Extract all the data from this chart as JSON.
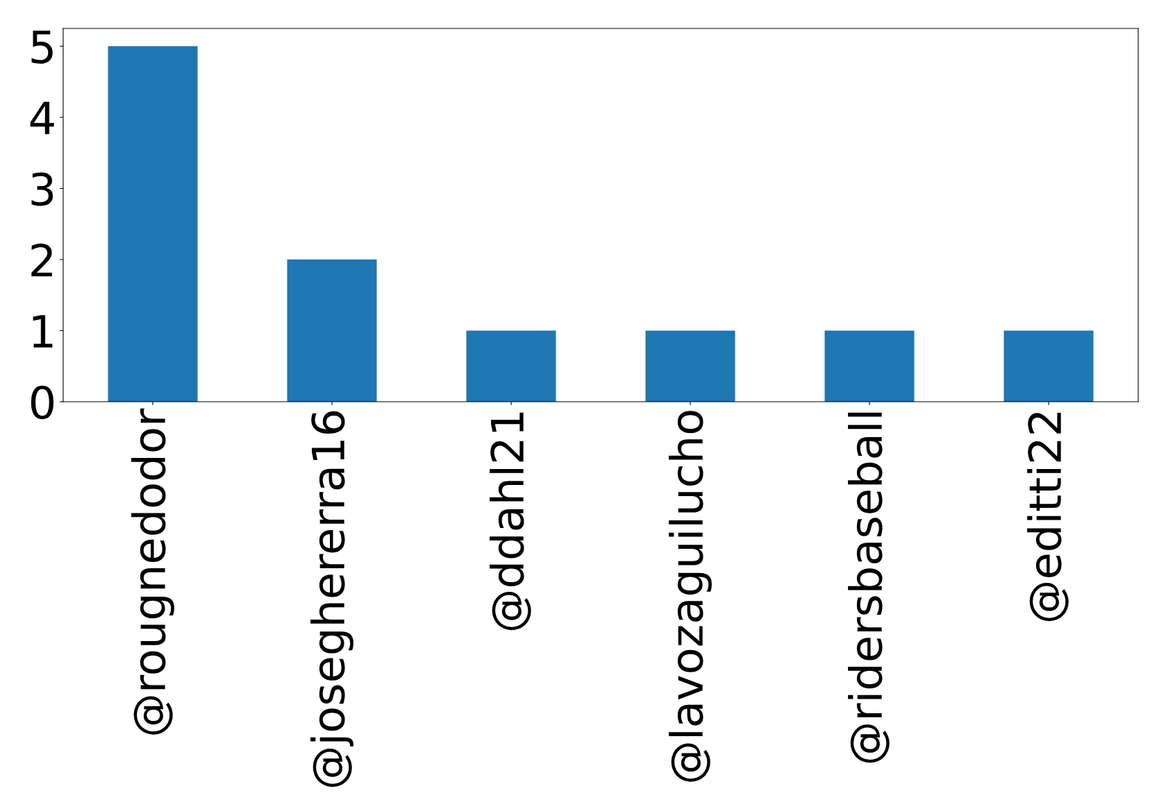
{
  "chart_data": {
    "type": "bar",
    "categories": [
      "@rougnedodor",
      "@joseghererra16",
      "@ddahl21",
      "@lavozaguilucho",
      "@ridersbaseball",
      "@editti22"
    ],
    "values": [
      5,
      2,
      1,
      1,
      1,
      1
    ],
    "color": "#1f77b4",
    "ylim": [
      0,
      5.25
    ],
    "yticks": [
      0,
      1,
      2,
      3,
      4,
      5
    ],
    "grid": false,
    "legend": false
  }
}
